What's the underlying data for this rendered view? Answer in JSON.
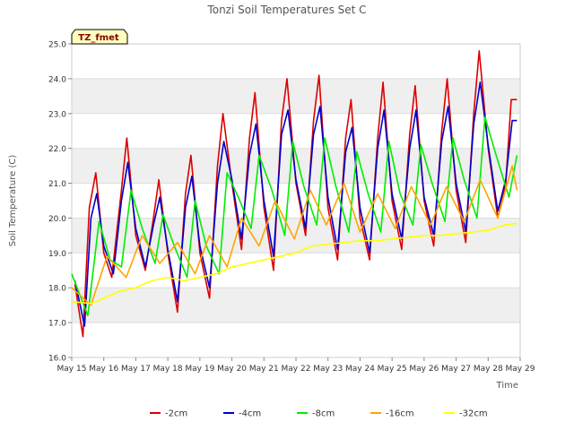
{
  "chart_data": {
    "type": "line",
    "title": "Tonzi Soil Temperatures Set C",
    "xlabel": "Time",
    "ylabel": "Soil Temperature (C)",
    "badge": "TZ_fmet",
    "ylim": [
      16.0,
      25.0
    ],
    "xlim": [
      15,
      29
    ],
    "yticks": [
      16.0,
      17.0,
      18.0,
      19.0,
      20.0,
      21.0,
      22.0,
      23.0,
      24.0,
      25.0
    ],
    "ytick_labels": [
      "16.0",
      "17.0",
      "18.0",
      "19.0",
      "20.0",
      "21.0",
      "22.0",
      "23.0",
      "24.0",
      "25.0"
    ],
    "xticks": [
      15,
      16,
      17,
      18,
      19,
      20,
      21,
      22,
      23,
      24,
      25,
      26,
      27,
      28,
      29
    ],
    "xtick_labels": [
      "May 15",
      "May 16",
      "May 17",
      "May 18",
      "May 19",
      "May 20",
      "May 21",
      "May 22",
      "May 23",
      "May 24",
      "May 25",
      "May 26",
      "May 27",
      "May 28",
      "May 29"
    ],
    "grid": true,
    "legend_position": "bottom",
    "series": [
      {
        "name": "-2cm",
        "color": "#dd0000",
        "x": [
          15.1,
          15.35,
          15.55,
          15.75,
          16.0,
          16.25,
          16.55,
          16.72,
          17.0,
          17.3,
          17.55,
          17.72,
          18.0,
          18.3,
          18.55,
          18.72,
          19.0,
          19.3,
          19.55,
          19.72,
          20.0,
          20.3,
          20.55,
          20.72,
          21.0,
          21.3,
          21.55,
          21.72,
          22.0,
          22.3,
          22.55,
          22.72,
          23.0,
          23.3,
          23.55,
          23.72,
          24.0,
          24.3,
          24.55,
          24.72,
          25.0,
          25.3,
          25.55,
          25.72,
          26.0,
          26.3,
          26.55,
          26.72,
          27.0,
          27.3,
          27.55,
          27.72,
          28.0,
          28.3,
          28.55,
          28.72,
          28.9
        ],
        "y": [
          18.1,
          16.6,
          20.3,
          21.3,
          19.0,
          18.3,
          20.8,
          22.3,
          19.5,
          18.5,
          20.0,
          21.1,
          19.0,
          17.3,
          20.7,
          21.8,
          19.0,
          17.7,
          21.5,
          23.0,
          21.0,
          19.1,
          22.3,
          23.6,
          20.3,
          18.5,
          22.8,
          24.0,
          21.0,
          19.5,
          22.8,
          24.1,
          20.3,
          18.8,
          22.3,
          23.4,
          20.0,
          18.8,
          22.3,
          23.9,
          20.5,
          19.1,
          22.4,
          23.8,
          20.5,
          19.2,
          22.5,
          24.0,
          20.8,
          19.3,
          23.0,
          24.8,
          22.0,
          20.0,
          21.0,
          23.4,
          23.4
        ]
      },
      {
        "name": "-4cm",
        "color": "#0000cc",
        "x": [
          15.1,
          15.4,
          15.6,
          15.78,
          16.0,
          16.3,
          16.55,
          16.75,
          17.0,
          17.3,
          17.55,
          17.75,
          18.0,
          18.3,
          18.55,
          18.75,
          19.0,
          19.3,
          19.55,
          19.75,
          20.0,
          20.3,
          20.55,
          20.75,
          21.0,
          21.3,
          21.55,
          21.75,
          22.0,
          22.3,
          22.55,
          22.75,
          23.0,
          23.3,
          23.55,
          23.75,
          24.0,
          24.3,
          24.55,
          24.75,
          25.0,
          25.3,
          25.55,
          25.75,
          26.0,
          26.3,
          26.55,
          26.75,
          27.0,
          27.3,
          27.55,
          27.75,
          28.0,
          28.3,
          28.55,
          28.75,
          28.9
        ],
        "y": [
          18.2,
          16.9,
          20.0,
          20.7,
          19.2,
          18.4,
          20.5,
          21.6,
          19.7,
          18.6,
          19.8,
          20.6,
          19.1,
          17.6,
          20.3,
          21.2,
          19.2,
          18.0,
          21.0,
          22.2,
          21.1,
          19.4,
          21.8,
          22.7,
          20.5,
          18.9,
          22.4,
          23.1,
          21.1,
          19.7,
          22.4,
          23.2,
          20.6,
          19.1,
          21.9,
          22.6,
          20.3,
          19.0,
          22.0,
          23.1,
          20.7,
          19.4,
          22.0,
          23.1,
          20.6,
          19.5,
          22.2,
          23.2,
          21.0,
          19.6,
          22.7,
          23.9,
          22.1,
          20.2,
          21.1,
          22.8,
          22.8
        ]
      },
      {
        "name": "-8cm",
        "color": "#00ee00",
        "x": [
          15.0,
          15.5,
          15.85,
          16.2,
          16.55,
          16.85,
          17.2,
          17.6,
          17.85,
          18.2,
          18.6,
          18.85,
          19.2,
          19.6,
          19.85,
          20.2,
          20.6,
          20.85,
          21.25,
          21.65,
          21.9,
          22.25,
          22.65,
          22.9,
          23.25,
          23.65,
          23.9,
          24.25,
          24.65,
          24.9,
          25.25,
          25.65,
          25.9,
          26.25,
          26.65,
          26.9,
          27.25,
          27.65,
          27.9,
          28.25,
          28.65,
          28.9
        ],
        "y": [
          18.4,
          17.2,
          19.9,
          18.8,
          18.6,
          20.8,
          19.7,
          18.7,
          20.1,
          19.2,
          18.3,
          20.5,
          19.2,
          18.4,
          21.3,
          20.6,
          19.7,
          21.8,
          20.8,
          19.5,
          22.2,
          20.9,
          19.8,
          22.3,
          20.9,
          19.6,
          21.9,
          20.7,
          19.6,
          22.2,
          20.7,
          19.8,
          22.1,
          21.0,
          19.9,
          22.3,
          21.1,
          20.0,
          22.9,
          21.8,
          20.6,
          21.8
        ]
      },
      {
        "name": "-16cm",
        "color": "#ffa500",
        "x": [
          15.0,
          15.6,
          16.1,
          16.7,
          17.2,
          17.75,
          18.3,
          18.85,
          19.3,
          19.85,
          20.3,
          20.85,
          21.35,
          21.95,
          22.45,
          22.95,
          23.5,
          24.0,
          24.55,
          25.1,
          25.6,
          26.2,
          26.7,
          27.25,
          27.75,
          28.3,
          28.75,
          28.9
        ],
        "y": [
          18.0,
          17.5,
          18.9,
          18.3,
          19.5,
          18.7,
          19.3,
          18.4,
          19.5,
          18.6,
          20.0,
          19.2,
          20.5,
          19.4,
          20.8,
          19.8,
          21.0,
          19.6,
          20.7,
          19.7,
          20.9,
          19.8,
          20.9,
          19.9,
          21.1,
          20.0,
          21.5,
          20.8
        ]
      },
      {
        "name": "-32cm",
        "color": "#ffff00",
        "x": [
          15.0,
          15.6,
          16.0,
          16.5,
          17.0,
          17.5,
          18.0,
          18.5,
          19.0,
          19.5,
          20.0,
          20.5,
          21.0,
          21.5,
          22.0,
          22.5,
          23.0,
          23.5,
          24.0,
          24.5,
          25.0,
          25.5,
          26.0,
          26.5,
          27.0,
          27.5,
          28.0,
          28.5,
          28.9
        ],
        "y": [
          17.6,
          17.55,
          17.7,
          17.9,
          18.0,
          18.2,
          18.3,
          18.2,
          18.3,
          18.4,
          18.6,
          18.7,
          18.8,
          18.9,
          19.0,
          19.2,
          19.25,
          19.3,
          19.35,
          19.35,
          19.4,
          19.45,
          19.5,
          19.5,
          19.55,
          19.6,
          19.65,
          19.8,
          19.85
        ]
      }
    ]
  }
}
